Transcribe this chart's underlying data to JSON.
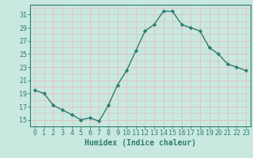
{
  "x": [
    0,
    1,
    2,
    3,
    4,
    5,
    6,
    7,
    8,
    9,
    10,
    11,
    12,
    13,
    14,
    15,
    16,
    17,
    18,
    19,
    20,
    21,
    22,
    23
  ],
  "y": [
    19.5,
    19.0,
    17.2,
    16.5,
    15.8,
    15.0,
    15.3,
    14.8,
    17.2,
    20.3,
    22.5,
    25.5,
    28.5,
    29.5,
    31.5,
    31.5,
    29.5,
    29.0,
    28.5,
    26.0,
    25.0,
    23.5,
    23.0,
    22.5
  ],
  "line_color": "#2e7d6e",
  "marker": "D",
  "markersize": 2.2,
  "linewidth": 1.0,
  "bg_color": "#c8e8e0",
  "grid_major_color": "#e8c8c8",
  "grid_minor_color": "#c8e8e0",
  "xlabel": "Humidex (Indice chaleur)",
  "xlabel_fontsize": 7,
  "ylabel_ticks": [
    15,
    17,
    19,
    21,
    23,
    25,
    27,
    29,
    31
  ],
  "ylim": [
    14.0,
    32.5
  ],
  "xlim": [
    -0.5,
    23.5
  ],
  "tick_fontsize": 6,
  "spine_color": "#2e7d6e"
}
